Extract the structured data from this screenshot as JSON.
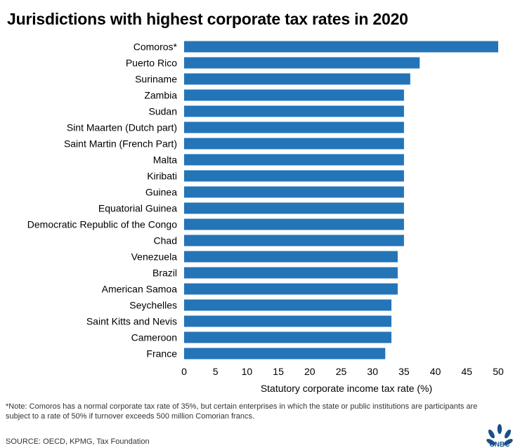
{
  "header": {
    "title": "Jurisdictions with highest corporate tax rates in 2020"
  },
  "chart_data": {
    "type": "bar",
    "orientation": "horizontal",
    "title": "Jurisdictions with highest corporate tax rates in 2020",
    "xlabel": "Statutory corporate income tax rate (%)",
    "ylabel": "",
    "xlim": [
      0,
      50
    ],
    "xticks": [
      0,
      5,
      10,
      15,
      20,
      25,
      30,
      35,
      40,
      45,
      50
    ],
    "grid": false,
    "color": "#2474b8",
    "categories": [
      "Comoros*",
      "Puerto Rico",
      "Suriname",
      "Zambia",
      "Sudan",
      "Sint Maarten (Dutch part)",
      "Saint Martin (French Part)",
      "Malta",
      "Kiribati",
      "Guinea",
      "Equatorial Guinea",
      "Democratic Republic of the Congo",
      "Chad",
      "Venezuela",
      "Brazil",
      "American Samoa",
      "Seychelles",
      "Saint Kitts and Nevis",
      "Cameroon",
      "France"
    ],
    "values": [
      50,
      37.5,
      36,
      35,
      35,
      35,
      35,
      35,
      35,
      35,
      35,
      35,
      35,
      34,
      34,
      34,
      33,
      33,
      33,
      32.02
    ]
  },
  "footer": {
    "note": "*Note: Comoros has a normal corporate tax rate of 35%, but certain enterprises in which the state or public institutions are participants are subject to a rate of 50% if turnover exceeds 500 million Comorian francs.",
    "source": "SOURCE: OECD, KPMG, Tax Foundation",
    "logo_text": "CNBC"
  }
}
